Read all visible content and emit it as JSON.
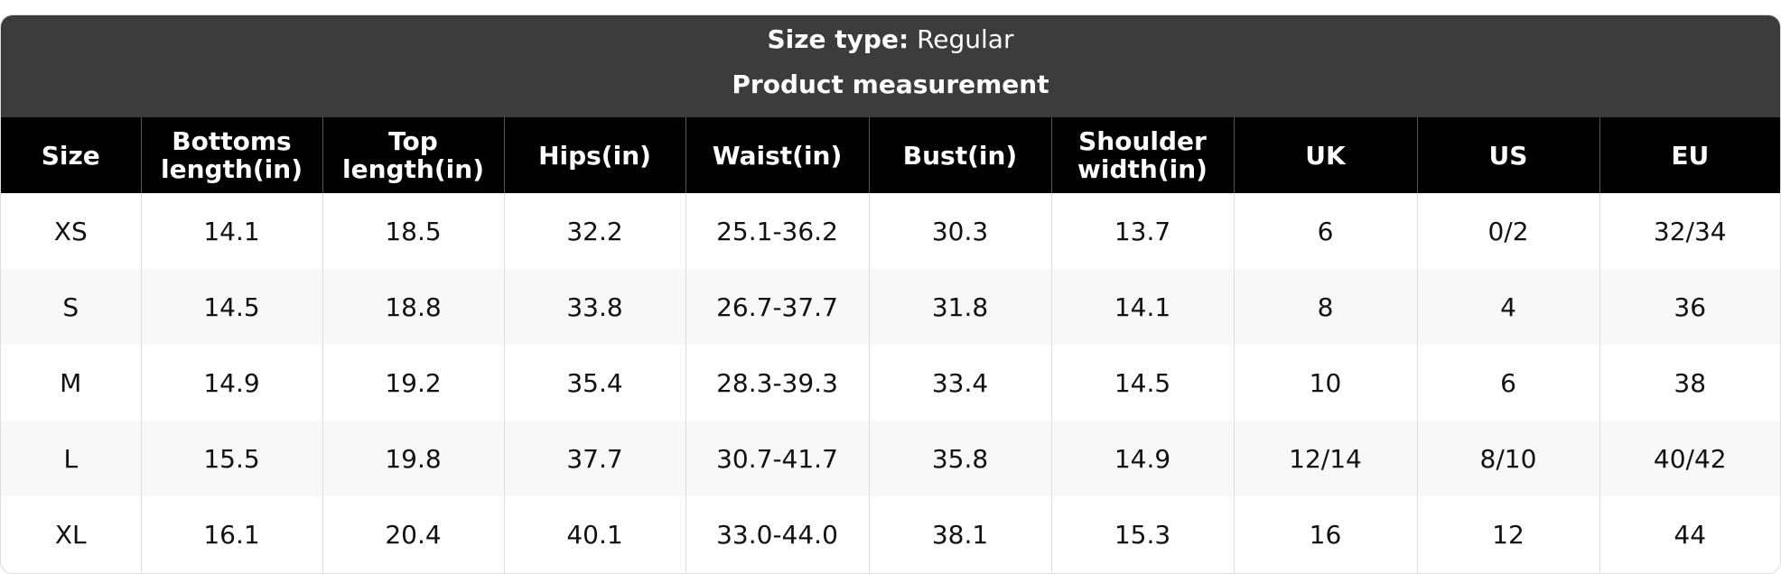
{
  "header": {
    "size_type_label": "Size type:",
    "size_type_value": "Regular",
    "subtitle": "Product measurement"
  },
  "table": {
    "columns": [
      "Size",
      "Bottoms length(in)",
      "Top length(in)",
      "Hips(in)",
      "Waist(in)",
      "Bust(in)",
      "Shoulder width(in)",
      "UK",
      "US",
      "EU"
    ],
    "rows": [
      [
        "XS",
        "14.1",
        "18.5",
        "32.2",
        "25.1-36.2",
        "30.3",
        "13.7",
        "6",
        "0/2",
        "32/34"
      ],
      [
        "S",
        "14.5",
        "18.8",
        "33.8",
        "26.7-37.7",
        "31.8",
        "14.1",
        "8",
        "4",
        "36"
      ],
      [
        "M",
        "14.9",
        "19.2",
        "35.4",
        "28.3-39.3",
        "33.4",
        "14.5",
        "10",
        "6",
        "38"
      ],
      [
        "L",
        "15.5",
        "19.8",
        "37.7",
        "30.7-41.7",
        "35.8",
        "14.9",
        "12/14",
        "8/10",
        "40/42"
      ],
      [
        "XL",
        "16.1",
        "20.4",
        "40.1",
        "33.0-44.0",
        "38.1",
        "15.3",
        "16",
        "12",
        "44"
      ]
    ]
  }
}
